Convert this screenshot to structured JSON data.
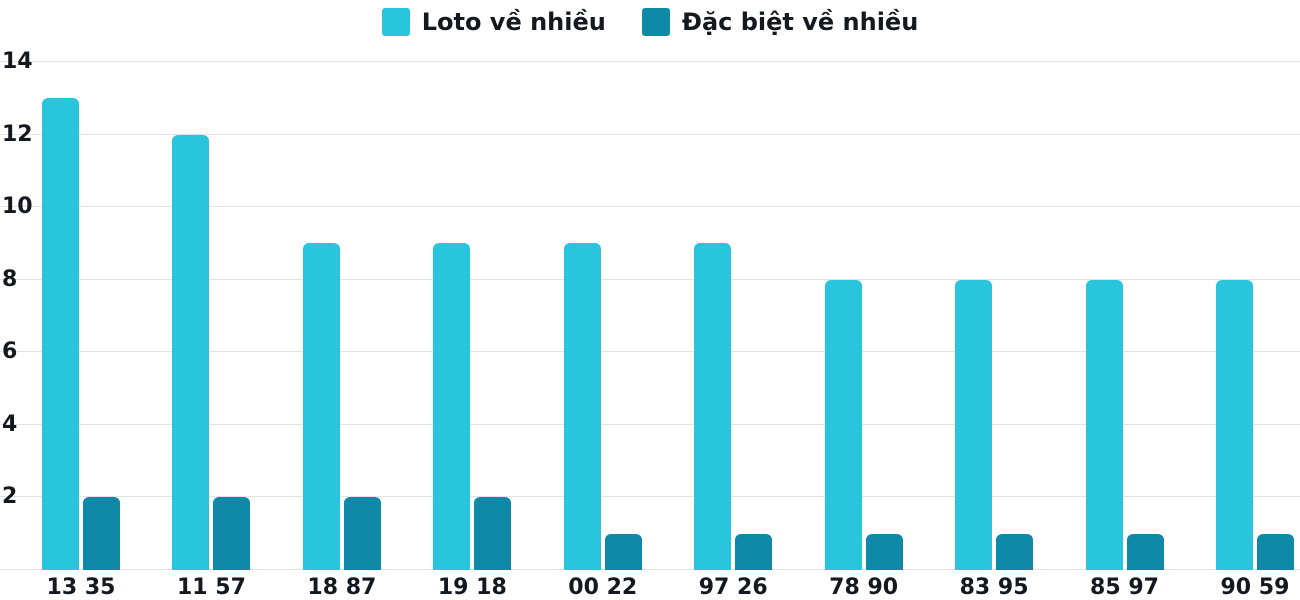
{
  "chart_data": {
    "type": "bar",
    "title": "",
    "categories": [
      "13 35",
      "11 57",
      "18 87",
      "19 18",
      "00 22",
      "97 26",
      "78 90",
      "83 95",
      "85 97",
      "90 59"
    ],
    "series": [
      {
        "name": "Loto về nhiều",
        "color": "#29c5dc",
        "values": [
          13,
          12,
          9,
          9,
          9,
          9,
          8,
          8,
          8,
          8
        ]
      },
      {
        "name": "Đặc biệt về nhiều",
        "color": "#1089a9",
        "values": [
          2,
          2,
          2,
          2,
          1,
          1,
          1,
          1,
          1,
          1
        ]
      }
    ],
    "xlabel": "",
    "ylabel": "",
    "ylim": [
      0,
      14
    ],
    "y_ticks": [
      14,
      12,
      10,
      8,
      6,
      4,
      2
    ],
    "grid": true,
    "legend_position": "top",
    "grid_color": "#e3e3e3",
    "text_color": "#14181f"
  }
}
